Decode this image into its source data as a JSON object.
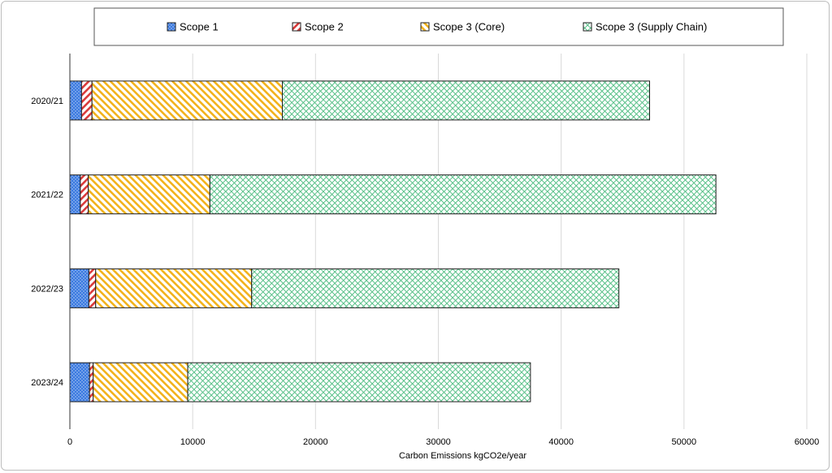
{
  "chart_data": {
    "type": "bar",
    "orientation": "horizontal",
    "stacked": true,
    "categories": [
      "2020/21",
      "2021/22",
      "2022/23",
      "2023/24"
    ],
    "series": [
      {
        "name": "Scope 1",
        "values": [
          950,
          850,
          1550,
          1600
        ],
        "color": "#3b7ae0",
        "pattern": "dots"
      },
      {
        "name": "Scope 2",
        "values": [
          850,
          650,
          550,
          300
        ],
        "color": "#d93a3a",
        "pattern": "diagonal-right"
      },
      {
        "name": "Scope 3 (Core)",
        "values": [
          15500,
          9900,
          12700,
          7700
        ],
        "color": "#f2b21b",
        "pattern": "diagonal-left"
      },
      {
        "name": "Scope 3 (Supply Chain)",
        "values": [
          29900,
          41200,
          29900,
          27900
        ],
        "color": "#58c088",
        "pattern": "crosshatch"
      }
    ],
    "xlabel": "Carbon Emissions kgCO2e/year",
    "ylabel": "",
    "xlim": [
      0,
      60000
    ],
    "xticks": [
      "0",
      "10000",
      "20000",
      "30000",
      "40000",
      "50000",
      "60000"
    ],
    "grid": true,
    "legend_position": "top"
  }
}
